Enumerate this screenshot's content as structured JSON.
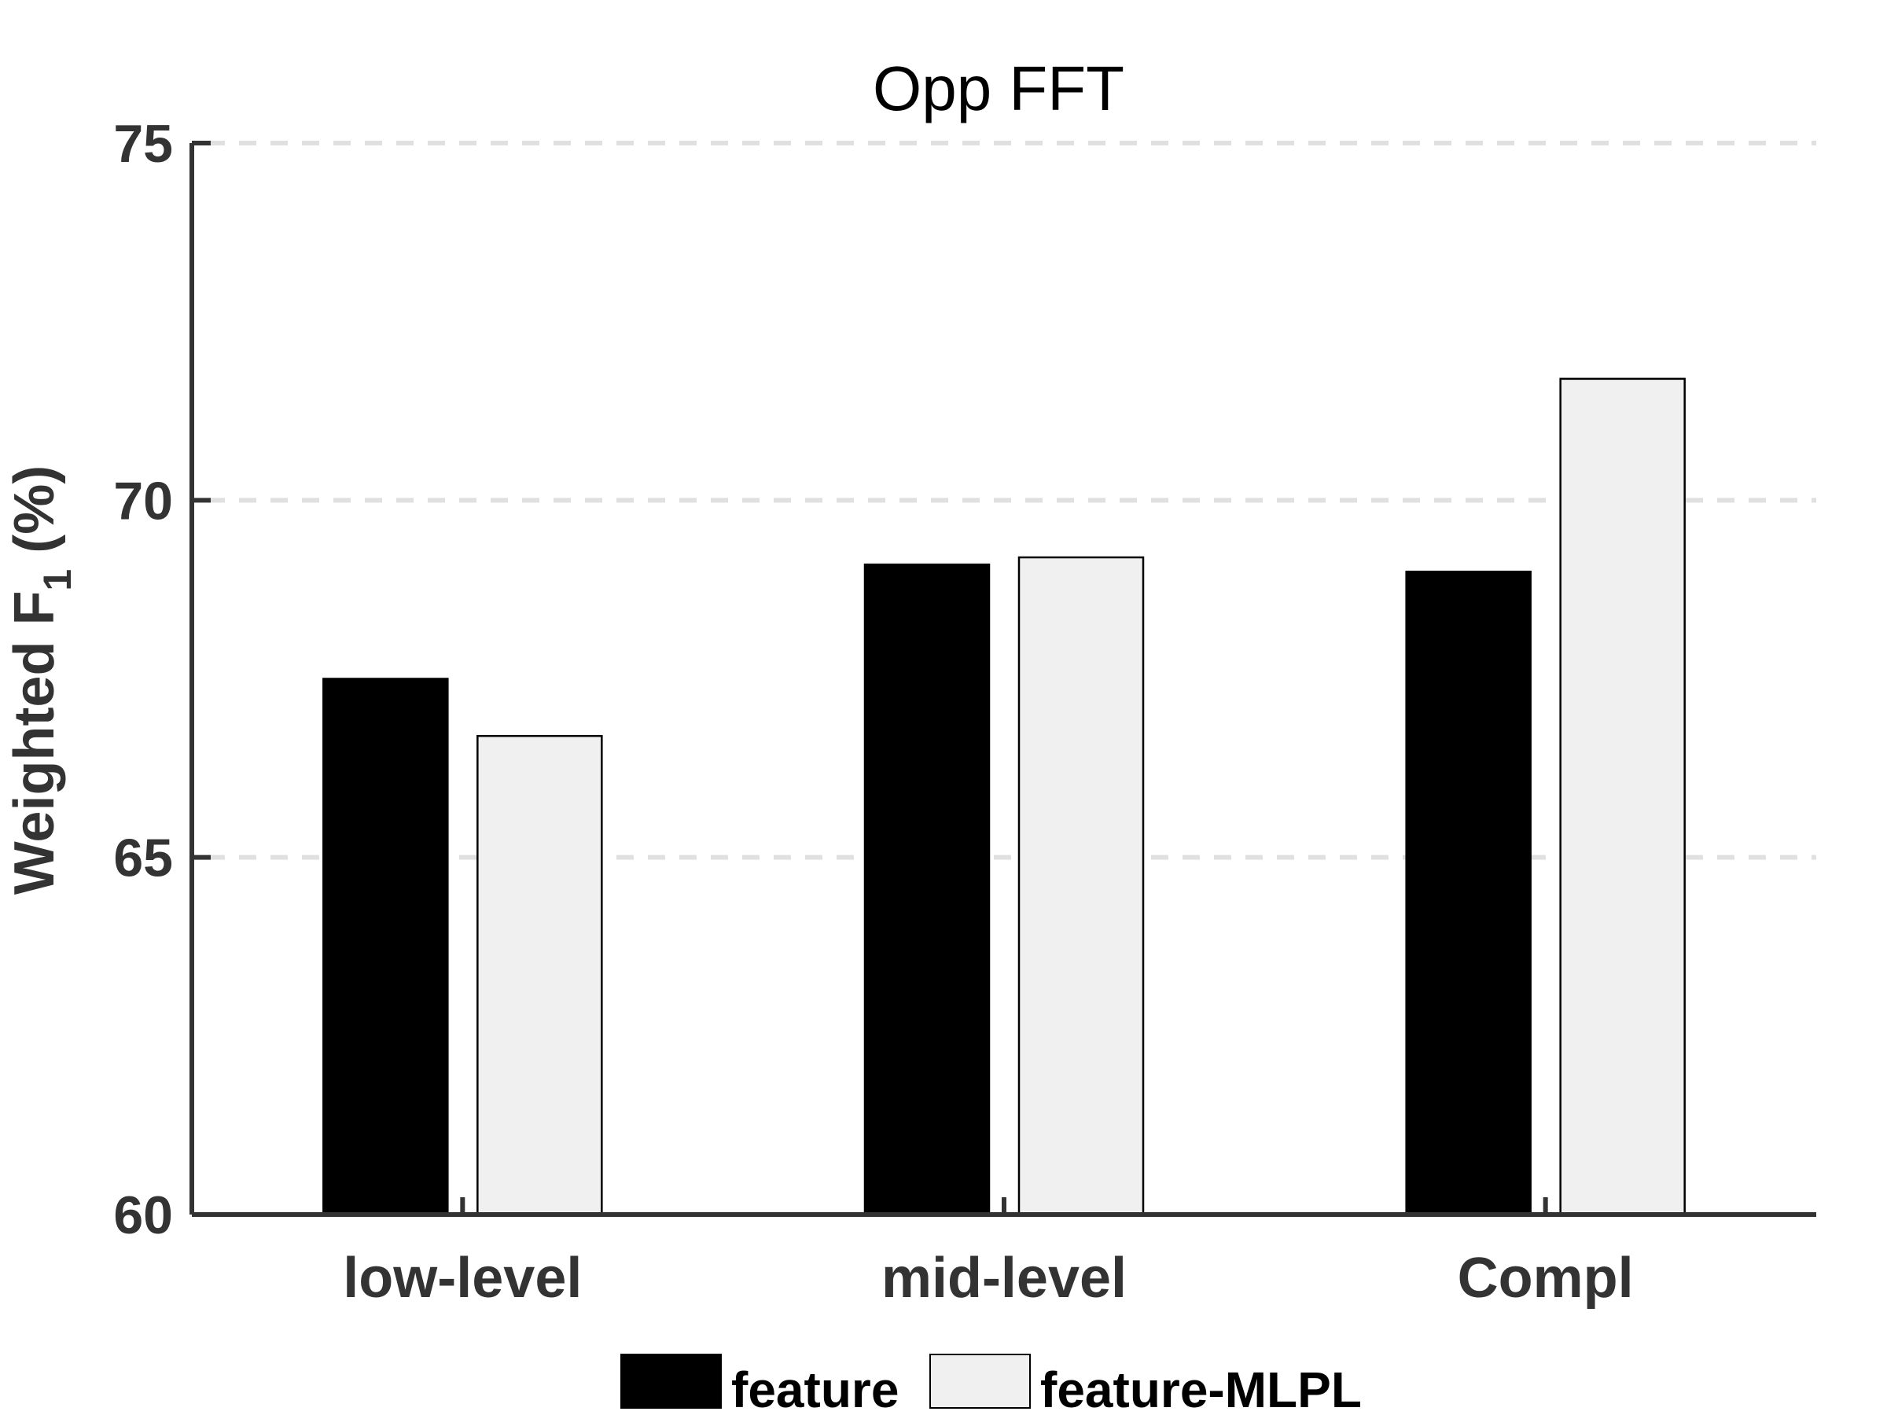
{
  "chart_data": {
    "type": "bar",
    "title": "Opp   FFT",
    "xlabel": "",
    "ylabel": "Weighted  F",
    "ylabel_subscript": "1",
    "ylabel_suffix": " (%)",
    "ylim": [
      60,
      75
    ],
    "yticks": [
      60,
      65,
      70,
      75
    ],
    "grid": "horizontal dashed",
    "legend_position": "bottom",
    "categories": [
      "low-level",
      "mid-level",
      "Compl"
    ],
    "series": [
      {
        "name": "feature",
        "values": [
          67.5,
          69.1,
          69.0
        ],
        "color": "#000000"
      },
      {
        "name": "feature-MLPL",
        "values": [
          66.7,
          69.2,
          71.7
        ],
        "color": "#f0f0f0"
      }
    ]
  }
}
